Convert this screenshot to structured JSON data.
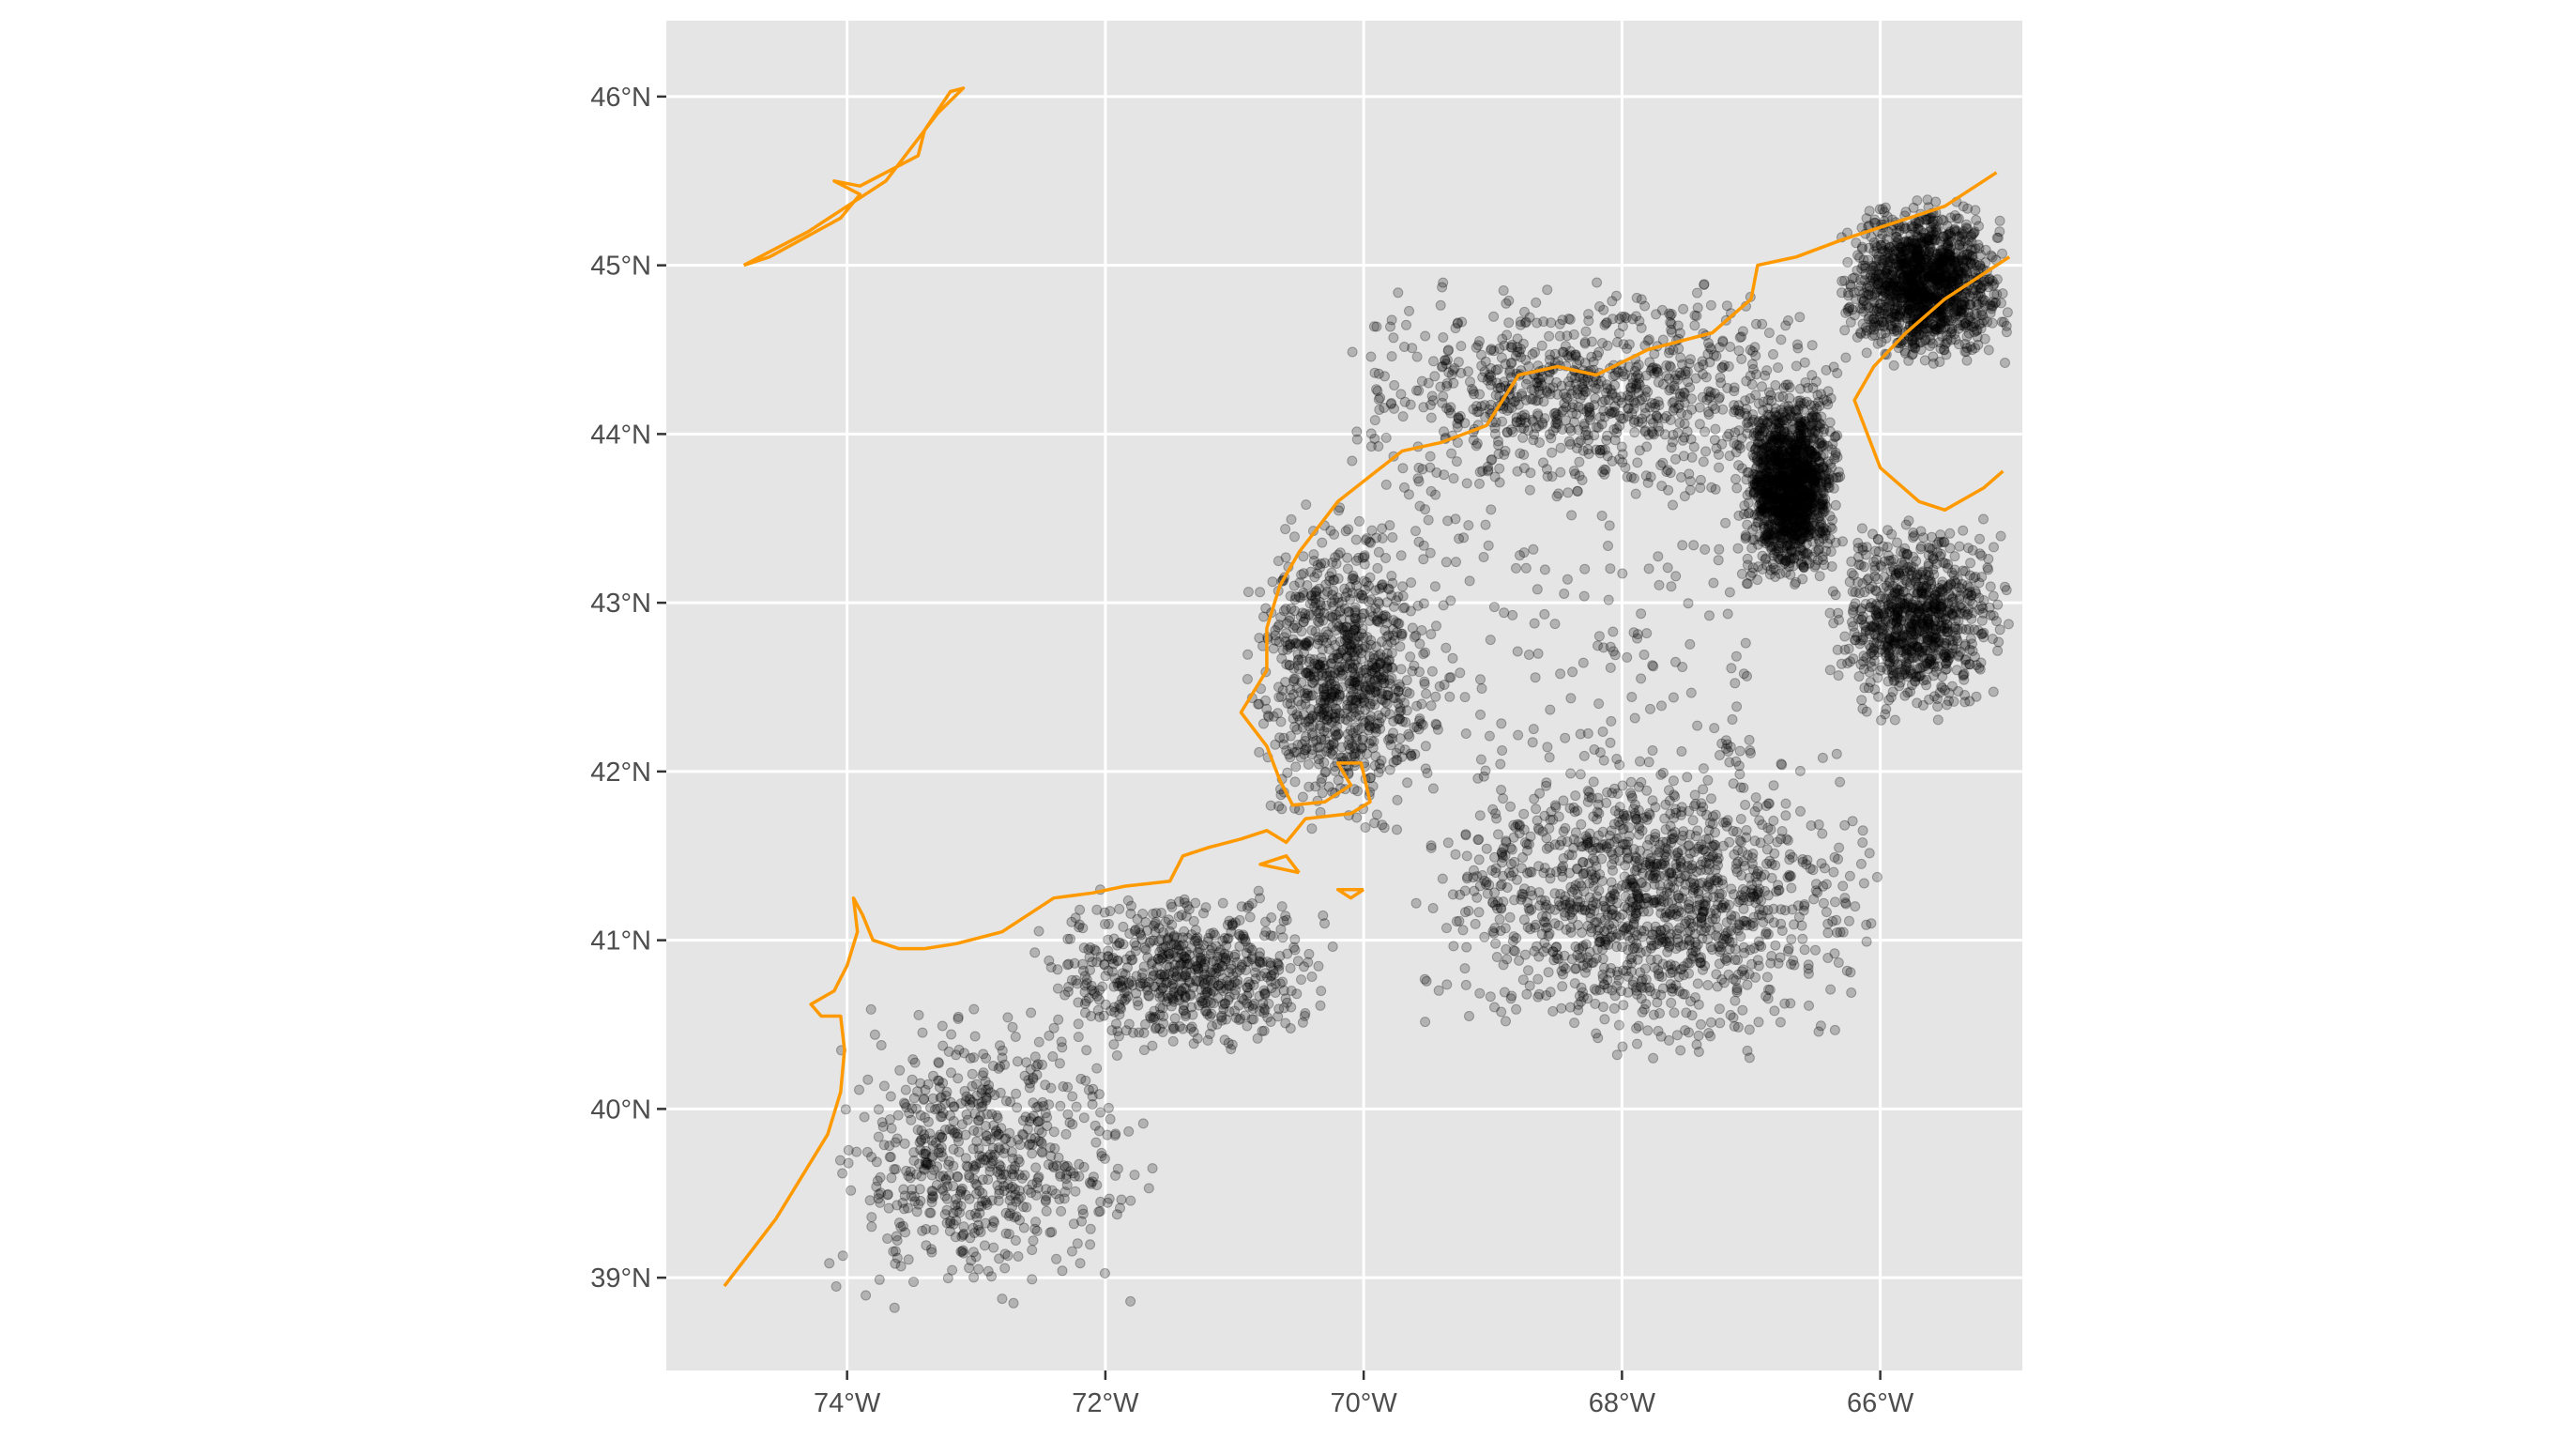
{
  "map": {
    "panel_background": "#e5e5e5",
    "grid_color": "#ffffff",
    "point_color": "#000000",
    "coastline_color": "#ff9900",
    "x_range": [
      -75.4,
      -64.9
    ],
    "y_range": [
      38.45,
      46.45
    ],
    "x_ticks": [
      {
        "value": -74,
        "label": "74°W"
      },
      {
        "value": -72,
        "label": "72°W"
      },
      {
        "value": -70,
        "label": "70°W"
      },
      {
        "value": -68,
        "label": "68°W"
      },
      {
        "value": -66,
        "label": "66°W"
      }
    ],
    "y_ticks": [
      {
        "value": 39,
        "label": "39°N"
      },
      {
        "value": 40,
        "label": "40°N"
      },
      {
        "value": 41,
        "label": "41°N"
      },
      {
        "value": 42,
        "label": "42°N"
      },
      {
        "value": 43,
        "label": "43°N"
      },
      {
        "value": 44,
        "label": "44°N"
      },
      {
        "value": 45,
        "label": "45°N"
      },
      {
        "value": 46,
        "label": "46°N"
      }
    ]
  },
  "chart_data": {
    "type": "scatter",
    "title": "",
    "xlabel": "",
    "ylabel": "",
    "xlim": [
      -75.4,
      -64.9
    ],
    "ylim": [
      38.45,
      46.45
    ],
    "grid": true,
    "x_tick_labels": [
      "74°W",
      "72°W",
      "70°W",
      "68°W",
      "66°W"
    ],
    "y_tick_labels": [
      "39°N",
      "40°N",
      "41°N",
      "42°N",
      "43°N",
      "44°N",
      "45°N",
      "46°N"
    ],
    "point_density_regions": [
      {
        "lon_range": [
          -74.2,
          -71.6
        ],
        "lat_range": [
          38.8,
          40.6
        ],
        "density": "medium"
      },
      {
        "lon_range": [
          -72.6,
          -70.2
        ],
        "lat_range": [
          40.3,
          41.3
        ],
        "density": "medium"
      },
      {
        "lon_range": [
          -70.9,
          -69.4
        ],
        "lat_range": [
          41.6,
          43.6
        ],
        "density": "high"
      },
      {
        "lon_range": [
          -69.6,
          -66.0
        ],
        "lat_range": [
          40.3,
          42.2
        ],
        "density": "very high"
      },
      {
        "lon_range": [
          -70.0,
          -67.0
        ],
        "lat_range": [
          42.0,
          43.8
        ],
        "density": "low"
      },
      {
        "lon_range": [
          -70.2,
          -66.2
        ],
        "lat_range": [
          43.6,
          44.9
        ],
        "density": "high"
      },
      {
        "lon_range": [
          -67.1,
          -66.3
        ],
        "lat_range": [
          43.1,
          44.3
        ],
        "density": "very high"
      },
      {
        "lon_range": [
          -66.3,
          -65.0
        ],
        "lat_range": [
          44.4,
          45.4
        ],
        "density": "very high"
      },
      {
        "lon_range": [
          -66.4,
          -65.0
        ],
        "lat_range": [
          42.3,
          43.5
        ],
        "density": "high"
      }
    ],
    "coastline": [
      [
        [
          -74.8,
          45.0
        ],
        [
          -74.3,
          45.2
        ],
        [
          -74.0,
          45.35
        ],
        [
          -73.7,
          45.5
        ],
        [
          -73.5,
          45.7
        ],
        [
          -73.3,
          45.9
        ],
        [
          -73.1,
          46.05
        ],
        [
          -73.2,
          46.03
        ],
        [
          -73.4,
          45.8
        ],
        [
          -73.45,
          45.65
        ],
        [
          -73.7,
          45.55
        ],
        [
          -73.9,
          45.47
        ],
        [
          -74.1,
          45.5
        ],
        [
          -73.9,
          45.42
        ],
        [
          -74.05,
          45.28
        ],
        [
          -74.6,
          45.05
        ],
        [
          -74.8,
          45.0
        ]
      ],
      [
        [
          -74.95,
          38.95
        ],
        [
          -74.75,
          39.15
        ],
        [
          -74.55,
          39.35
        ],
        [
          -74.35,
          39.6
        ],
        [
          -74.15,
          39.85
        ],
        [
          -74.05,
          40.1
        ],
        [
          -74.02,
          40.35
        ],
        [
          -74.05,
          40.55
        ],
        [
          -74.2,
          40.55
        ],
        [
          -74.28,
          40.62
        ],
        [
          -74.1,
          40.7
        ],
        [
          -74.0,
          40.85
        ],
        [
          -73.92,
          41.05
        ],
        [
          -73.95,
          41.25
        ],
        [
          -73.88,
          41.15
        ],
        [
          -73.8,
          41.0
        ],
        [
          -73.6,
          40.95
        ],
        [
          -73.4,
          40.95
        ],
        [
          -73.15,
          40.98
        ],
        [
          -72.8,
          41.05
        ],
        [
          -72.4,
          41.25
        ],
        [
          -72.1,
          41.28
        ],
        [
          -71.85,
          41.32
        ],
        [
          -71.5,
          41.35
        ],
        [
          -71.4,
          41.5
        ],
        [
          -71.2,
          41.55
        ],
        [
          -70.95,
          41.6
        ],
        [
          -70.75,
          41.65
        ],
        [
          -70.6,
          41.58
        ],
        [
          -70.45,
          41.72
        ],
        [
          -70.1,
          41.75
        ],
        [
          -69.95,
          41.82
        ],
        [
          -70.02,
          42.05
        ],
        [
          -70.2,
          42.05
        ],
        [
          -70.1,
          41.92
        ],
        [
          -70.3,
          41.82
        ],
        [
          -70.55,
          41.8
        ],
        [
          -70.65,
          41.95
        ],
        [
          -70.75,
          42.15
        ],
        [
          -70.95,
          42.35
        ],
        [
          -70.75,
          42.6
        ],
        [
          -70.75,
          42.85
        ],
        [
          -70.65,
          43.1
        ],
        [
          -70.5,
          43.3
        ],
        [
          -70.2,
          43.6
        ],
        [
          -69.95,
          43.75
        ],
        [
          -69.7,
          43.9
        ],
        [
          -69.4,
          43.95
        ],
        [
          -69.05,
          44.05
        ],
        [
          -68.8,
          44.35
        ],
        [
          -68.5,
          44.4
        ],
        [
          -68.2,
          44.35
        ],
        [
          -67.8,
          44.5
        ],
        [
          -67.3,
          44.6
        ],
        [
          -67.0,
          44.8
        ],
        [
          -66.95,
          45.0
        ],
        [
          -66.65,
          45.05
        ],
        [
          -66.3,
          45.15
        ],
        [
          -65.9,
          45.25
        ],
        [
          -65.5,
          45.35
        ],
        [
          -65.1,
          45.55
        ]
      ],
      [
        [
          -65.0,
          45.05
        ],
        [
          -65.5,
          44.8
        ],
        [
          -65.8,
          44.6
        ],
        [
          -66.05,
          44.4
        ],
        [
          -66.2,
          44.2
        ],
        [
          -66.1,
          44.0
        ],
        [
          -66.0,
          43.8
        ],
        [
          -65.7,
          43.6
        ],
        [
          -65.5,
          43.55
        ],
        [
          -65.2,
          43.68
        ],
        [
          -65.05,
          43.78
        ]
      ],
      [
        [
          -70.0,
          41.3
        ],
        [
          -70.2,
          41.3
        ],
        [
          -70.1,
          41.25
        ],
        [
          -70.0,
          41.3
        ]
      ],
      [
        [
          -70.5,
          41.4
        ],
        [
          -70.8,
          41.45
        ],
        [
          -70.6,
          41.5
        ],
        [
          -70.5,
          41.4
        ]
      ]
    ]
  }
}
